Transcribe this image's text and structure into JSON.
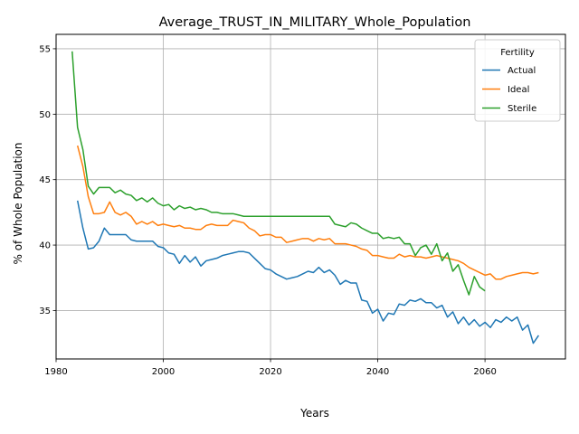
{
  "chart_data": {
    "type": "line",
    "title": "Average_TRUST_IN_MILITARY_Whole_Population",
    "xlabel": "Years",
    "ylabel": "% of Whole Population",
    "xlim": [
      1980,
      2075
    ],
    "ylim": [
      31.3,
      56.1
    ],
    "xticks": [
      1980,
      2000,
      2020,
      2040,
      2060
    ],
    "yticks": [
      35,
      40,
      45,
      50,
      55
    ],
    "grid": true,
    "legend": {
      "title": "Fertility",
      "placement": "top-right"
    },
    "series": [
      {
        "name": "Actual",
        "color": "#1f77b4",
        "x": [
          1984,
          1985,
          1986,
          1987,
          1988,
          1989,
          1990,
          1991,
          1992,
          1993,
          1994,
          1995,
          1996,
          1997,
          1998,
          1999,
          2000,
          2001,
          2002,
          2003,
          2004,
          2005,
          2006,
          2007,
          2008,
          2009,
          2010,
          2011,
          2012,
          2013,
          2014,
          2015,
          2016,
          2017,
          2018,
          2019,
          2020,
          2021,
          2022,
          2023,
          2024,
          2025,
          2026,
          2027,
          2028,
          2029,
          2030,
          2031,
          2032,
          2033,
          2034,
          2035,
          2036,
          2037,
          2038,
          2039,
          2040,
          2041,
          2042,
          2043,
          2044,
          2045,
          2046,
          2047,
          2048,
          2049,
          2050,
          2051,
          2052,
          2053,
          2054,
          2055,
          2056,
          2057,
          2058,
          2059,
          2060,
          2061,
          2062,
          2063,
          2064,
          2065,
          2066,
          2067,
          2068,
          2069,
          2070
        ],
        "y": [
          43.4,
          41.3,
          39.7,
          39.8,
          40.3,
          41.3,
          40.8,
          40.8,
          40.8,
          40.8,
          40.4,
          40.3,
          40.3,
          40.3,
          40.3,
          39.9,
          39.8,
          39.4,
          39.3,
          38.6,
          39.2,
          38.7,
          39.1,
          38.4,
          38.8,
          38.9,
          39.0,
          39.2,
          39.3,
          39.4,
          39.5,
          39.5,
          39.4,
          39.0,
          38.6,
          38.2,
          38.1,
          37.8,
          37.6,
          37.4,
          37.5,
          37.6,
          37.8,
          38.0,
          37.9,
          38.3,
          37.9,
          38.1,
          37.7,
          37.0,
          37.3,
          37.1,
          37.1,
          35.8,
          35.7,
          34.8,
          35.1,
          34.2,
          34.8,
          34.7,
          35.5,
          35.4,
          35.8,
          35.7,
          35.9,
          35.6,
          35.6,
          35.2,
          35.4,
          34.5,
          34.9,
          34.0,
          34.5,
          33.9,
          34.3,
          33.8,
          34.1,
          33.7,
          34.3,
          34.1,
          34.5,
          34.2,
          34.5,
          33.5,
          33.9,
          32.5,
          33.1
        ]
      },
      {
        "name": "Ideal",
        "color": "#ff7f0e",
        "x": [
          1984,
          1985,
          1986,
          1987,
          1988,
          1989,
          1990,
          1991,
          1992,
          1993,
          1994,
          1995,
          1996,
          1997,
          1998,
          1999,
          2000,
          2001,
          2002,
          2003,
          2004,
          2005,
          2006,
          2007,
          2008,
          2009,
          2010,
          2011,
          2012,
          2013,
          2014,
          2015,
          2016,
          2017,
          2018,
          2019,
          2020,
          2021,
          2022,
          2023,
          2024,
          2025,
          2026,
          2027,
          2028,
          2029,
          2030,
          2031,
          2032,
          2033,
          2034,
          2035,
          2036,
          2037,
          2038,
          2039,
          2040,
          2041,
          2042,
          2043,
          2044,
          2045,
          2046,
          2047,
          2048,
          2049,
          2050,
          2051,
          2052,
          2053,
          2054,
          2055,
          2056,
          2057,
          2058,
          2059,
          2060,
          2061,
          2062,
          2063,
          2064,
          2065,
          2066,
          2067,
          2068,
          2069,
          2070
        ],
        "y": [
          47.6,
          46.0,
          43.7,
          42.4,
          42.4,
          42.5,
          43.3,
          42.5,
          42.3,
          42.5,
          42.2,
          41.6,
          41.8,
          41.6,
          41.8,
          41.5,
          41.6,
          41.5,
          41.4,
          41.5,
          41.3,
          41.3,
          41.2,
          41.2,
          41.5,
          41.6,
          41.5,
          41.5,
          41.5,
          41.9,
          41.8,
          41.7,
          41.3,
          41.1,
          40.7,
          40.8,
          40.8,
          40.6,
          40.6,
          40.2,
          40.3,
          40.4,
          40.5,
          40.5,
          40.3,
          40.5,
          40.4,
          40.5,
          40.1,
          40.1,
          40.1,
          40.0,
          39.9,
          39.7,
          39.6,
          39.2,
          39.2,
          39.1,
          39.0,
          39.0,
          39.3,
          39.1,
          39.2,
          39.1,
          39.1,
          39.0,
          39.1,
          39.2,
          39.1,
          39.0,
          38.9,
          38.8,
          38.6,
          38.3,
          38.1,
          37.9,
          37.7,
          37.8,
          37.4,
          37.4,
          37.6,
          37.7,
          37.8,
          37.9,
          37.9,
          37.8,
          37.9
        ]
      },
      {
        "name": "Sterile",
        "color": "#2ca02c",
        "x": [
          1983,
          1984,
          1985,
          1986,
          1987,
          1988,
          1989,
          1990,
          1991,
          1992,
          1993,
          1994,
          1995,
          1996,
          1997,
          1998,
          1999,
          2000,
          2001,
          2002,
          2003,
          2004,
          2005,
          2006,
          2007,
          2008,
          2009,
          2010,
          2011,
          2012,
          2013,
          2014,
          2015,
          2016,
          2017,
          2018,
          2019,
          2020,
          2021,
          2022,
          2023,
          2024,
          2025,
          2026,
          2027,
          2028,
          2029,
          2030,
          2031,
          2032,
          2033,
          2034,
          2035,
          2036,
          2037,
          2038,
          2039,
          2040,
          2041,
          2042,
          2043,
          2044,
          2045,
          2046,
          2047,
          2048,
          2049,
          2050,
          2051,
          2052,
          2053,
          2054,
          2055,
          2056,
          2057,
          2058,
          2059,
          2060
        ],
        "y": [
          54.8,
          49.0,
          47.3,
          44.5,
          43.9,
          44.4,
          44.4,
          44.4,
          44.0,
          44.2,
          43.9,
          43.8,
          43.4,
          43.6,
          43.3,
          43.6,
          43.2,
          43.0,
          43.1,
          42.7,
          43.0,
          42.8,
          42.9,
          42.7,
          42.8,
          42.7,
          42.5,
          42.5,
          42.4,
          42.4,
          42.4,
          42.3,
          42.2,
          42.2,
          42.2,
          42.2,
          42.2,
          42.2,
          42.2,
          42.2,
          42.2,
          42.2,
          42.2,
          42.2,
          42.2,
          42.2,
          42.2,
          42.2,
          42.2,
          41.6,
          41.5,
          41.4,
          41.7,
          41.6,
          41.3,
          41.1,
          40.9,
          40.9,
          40.5,
          40.6,
          40.5,
          40.6,
          40.1,
          40.1,
          39.2,
          39.8,
          40.0,
          39.3,
          40.1,
          38.8,
          39.4,
          38.0,
          38.5,
          37.3,
          36.2,
          37.6,
          36.8,
          36.5
        ]
      }
    ]
  }
}
